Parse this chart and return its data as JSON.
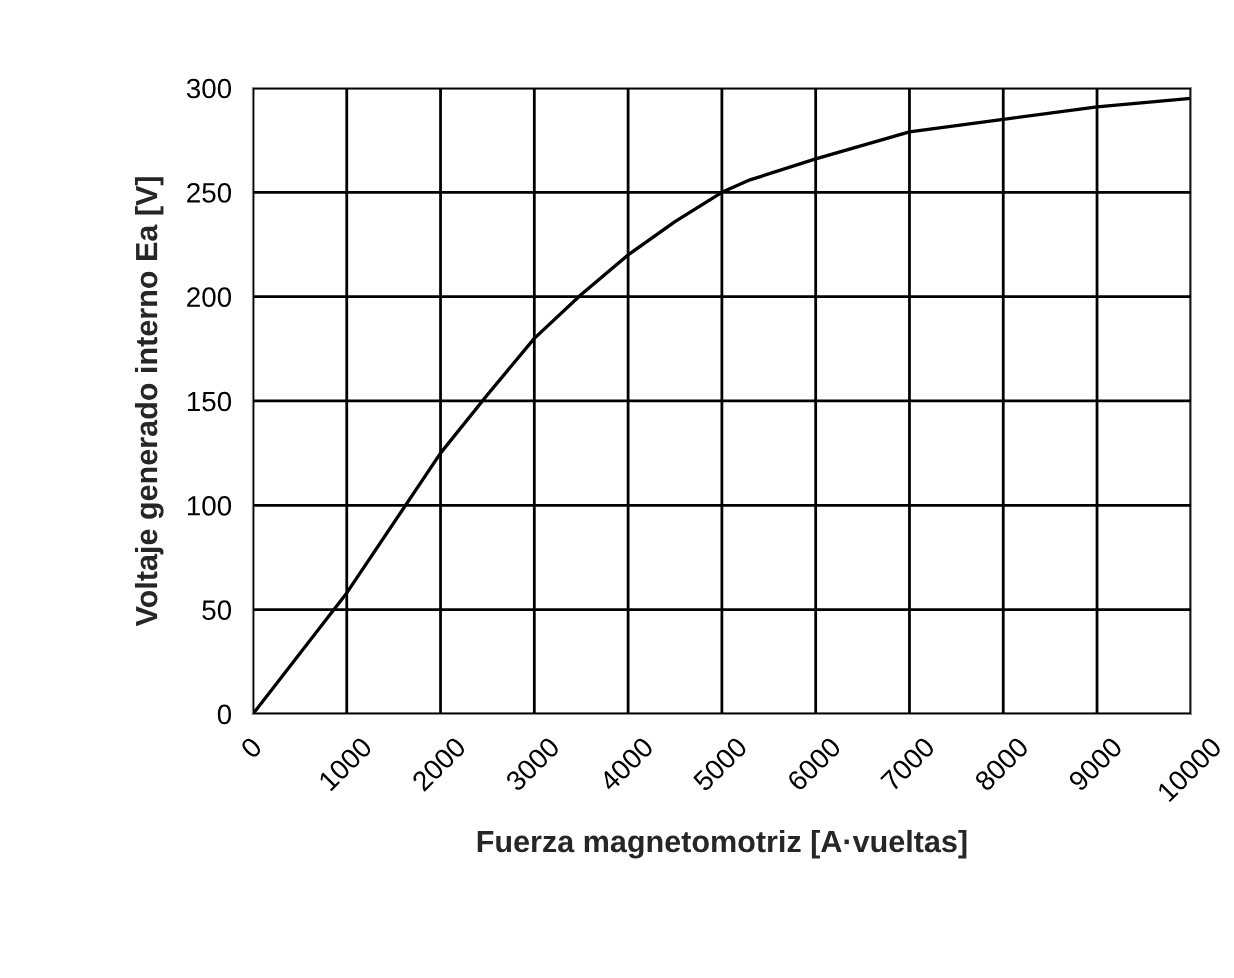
{
  "chart_data": {
    "type": "line",
    "xlabel": "Fuerza magnetomotriz [A·vueltas]",
    "ylabel": "Voltaje generado interno Ea [V]",
    "x": [
      0,
      1000,
      2000,
      2500,
      3000,
      3500,
      4000,
      4500,
      5000,
      5300,
      6000,
      7000,
      8000,
      9000,
      10000
    ],
    "series": [
      {
        "color": "#000000",
        "values": [
          0,
          58,
          125,
          153,
          180,
          201,
          220,
          236,
          250,
          256,
          266,
          279,
          285,
          291,
          295
        ]
      }
    ],
    "xlim": [
      0,
      10000
    ],
    "ylim": [
      0,
      300
    ],
    "xticks": [
      0,
      1000,
      2000,
      3000,
      4000,
      5000,
      6000,
      7000,
      8000,
      9000,
      10000
    ],
    "yticks": [
      0,
      50,
      100,
      150,
      200,
      250,
      300
    ],
    "grid": true,
    "marker": "none",
    "line_style": "solid"
  }
}
